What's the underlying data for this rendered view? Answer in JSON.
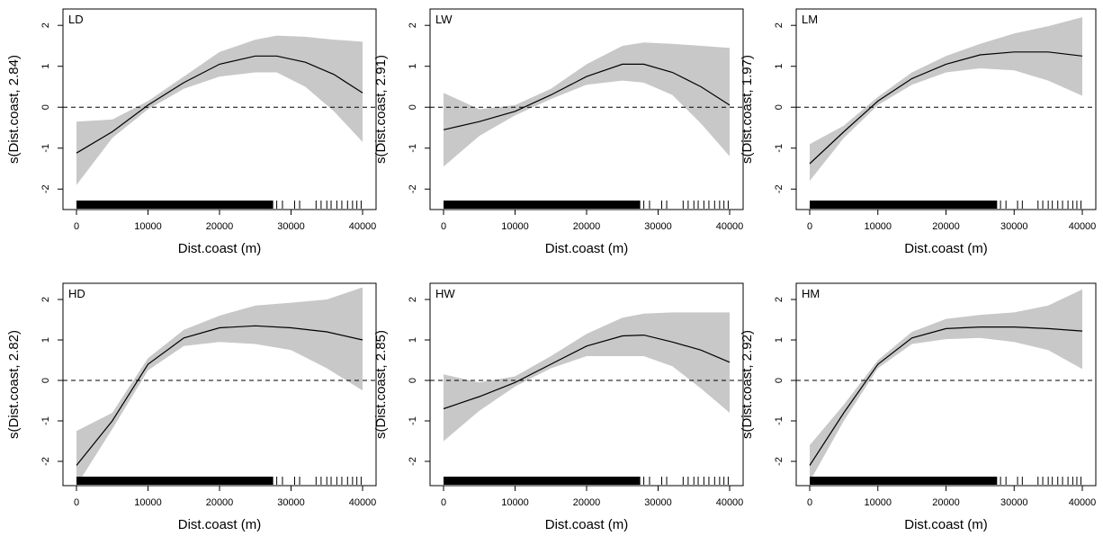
{
  "chart_data": [
    {
      "type": "line",
      "title": "LD",
      "xlabel": "Dist.coast (m)",
      "ylabel": "s(Dist.coast, 2.84)",
      "xlim": [
        0,
        40000
      ],
      "ylim": [
        -2.5,
        2.4
      ],
      "xticks": [
        0,
        10000,
        20000,
        30000,
        40000
      ],
      "yticks": [
        -2,
        -1,
        0,
        1,
        2
      ],
      "x": [
        0,
        5000,
        10000,
        15000,
        20000,
        25000,
        28000,
        32000,
        36000,
        40000
      ],
      "y": [
        -1.12,
        -0.6,
        0.05,
        0.6,
        1.05,
        1.25,
        1.25,
        1.1,
        0.8,
        0.35
      ],
      "lower": [
        -1.9,
        -0.75,
        -0.05,
        0.45,
        0.75,
        0.85,
        0.85,
        0.5,
        -0.1,
        -0.85
      ],
      "upper": [
        -0.35,
        -0.3,
        0.15,
        0.75,
        1.35,
        1.65,
        1.75,
        1.72,
        1.65,
        1.6
      ],
      "reference_line": 0
    },
    {
      "type": "line",
      "title": "LW",
      "xlabel": "Dist.coast (m)",
      "ylabel": "s(Dist.coast, 2.91)",
      "xlim": [
        0,
        40000
      ],
      "ylim": [
        -2.5,
        2.4
      ],
      "xticks": [
        0,
        10000,
        20000,
        30000,
        40000
      ],
      "yticks": [
        -2,
        -1,
        0,
        1,
        2
      ],
      "x": [
        0,
        5000,
        10000,
        15000,
        20000,
        25000,
        28000,
        32000,
        36000,
        40000
      ],
      "y": [
        -0.55,
        -0.35,
        -0.1,
        0.3,
        0.75,
        1.05,
        1.05,
        0.85,
        0.5,
        0.05
      ],
      "lower": [
        -1.45,
        -0.7,
        -0.2,
        0.2,
        0.55,
        0.65,
        0.6,
        0.3,
        -0.4,
        -1.2
      ],
      "upper": [
        0.35,
        -0.05,
        0.05,
        0.45,
        1.05,
        1.5,
        1.58,
        1.55,
        1.5,
        1.45
      ],
      "reference_line": 0
    },
    {
      "type": "line",
      "title": "LM",
      "xlabel": "Dist.coast (m)",
      "ylabel": "s(Dist.coast, 1.97)",
      "xlim": [
        0,
        40000
      ],
      "ylim": [
        -2.5,
        2.4
      ],
      "xticks": [
        0,
        10000,
        20000,
        30000,
        40000
      ],
      "yticks": [
        -2,
        -1,
        0,
        1,
        2
      ],
      "x": [
        0,
        5000,
        10000,
        15000,
        20000,
        25000,
        30000,
        35000,
        40000
      ],
      "y": [
        -1.38,
        -0.6,
        0.15,
        0.7,
        1.05,
        1.28,
        1.35,
        1.35,
        1.25
      ],
      "lower": [
        -1.8,
        -0.75,
        0.05,
        0.55,
        0.85,
        0.95,
        0.9,
        0.65,
        0.28
      ],
      "upper": [
        -0.9,
        -0.45,
        0.25,
        0.85,
        1.25,
        1.55,
        1.8,
        1.98,
        2.2
      ],
      "reference_line": 0
    },
    {
      "type": "line",
      "title": "HD",
      "xlabel": "Dist.coast (m)",
      "ylabel": "s(Dist.coast, 2.82)",
      "xlim": [
        0,
        40000
      ],
      "ylim": [
        -2.6,
        2.4
      ],
      "xticks": [
        0,
        10000,
        20000,
        30000,
        40000
      ],
      "yticks": [
        -2,
        -1,
        0,
        1,
        2
      ],
      "x": [
        0,
        5000,
        10000,
        15000,
        20000,
        25000,
        30000,
        35000,
        40000
      ],
      "y": [
        -2.1,
        -1.0,
        0.4,
        1.05,
        1.3,
        1.35,
        1.3,
        1.2,
        1.0
      ],
      "lower": [
        -2.6,
        -1.2,
        0.25,
        0.85,
        0.95,
        0.9,
        0.75,
        0.3,
        -0.25
      ],
      "upper": [
        -1.25,
        -0.8,
        0.55,
        1.25,
        1.6,
        1.85,
        1.92,
        2.0,
        2.3
      ],
      "reference_line": 0
    },
    {
      "type": "line",
      "title": "HW",
      "xlabel": "Dist.coast (m)",
      "ylabel": "s(Dist.coast, 2.85)",
      "xlim": [
        0,
        40000
      ],
      "ylim": [
        -2.6,
        2.4
      ],
      "xticks": [
        0,
        10000,
        20000,
        30000,
        40000
      ],
      "yticks": [
        -2,
        -1,
        0,
        1,
        2
      ],
      "x": [
        0,
        5000,
        10000,
        15000,
        20000,
        25000,
        28000,
        32000,
        36000,
        40000
      ],
      "y": [
        -0.7,
        -0.4,
        -0.05,
        0.4,
        0.85,
        1.1,
        1.12,
        0.95,
        0.75,
        0.45
      ],
      "lower": [
        -1.5,
        -0.75,
        -0.15,
        0.3,
        0.6,
        0.6,
        0.6,
        0.35,
        -0.2,
        -0.8
      ],
      "upper": [
        0.15,
        -0.05,
        0.1,
        0.6,
        1.15,
        1.55,
        1.65,
        1.68,
        1.68,
        1.68
      ],
      "reference_line": 0
    },
    {
      "type": "line",
      "title": "HM",
      "xlabel": "Dist.coast (m)",
      "ylabel": "s(Dist.coast, 2.92)",
      "xlim": [
        0,
        40000
      ],
      "ylim": [
        -2.6,
        2.4
      ],
      "xticks": [
        0,
        10000,
        20000,
        30000,
        40000
      ],
      "yticks": [
        -2,
        -1,
        0,
        1,
        2
      ],
      "x": [
        0,
        5000,
        10000,
        15000,
        20000,
        25000,
        30000,
        35000,
        40000
      ],
      "y": [
        -2.1,
        -0.8,
        0.4,
        1.05,
        1.28,
        1.32,
        1.32,
        1.28,
        1.22
      ],
      "lower": [
        -2.5,
        -1.0,
        0.3,
        0.9,
        1.02,
        1.05,
        0.95,
        0.75,
        0.28
      ],
      "upper": [
        -1.6,
        -0.6,
        0.5,
        1.2,
        1.52,
        1.62,
        1.68,
        1.85,
        2.25
      ],
      "reference_line": 0
    }
  ]
}
